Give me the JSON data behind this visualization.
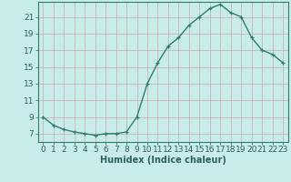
{
  "x": [
    0,
    1,
    2,
    3,
    4,
    5,
    6,
    7,
    8,
    9,
    10,
    11,
    12,
    13,
    14,
    15,
    16,
    17,
    18,
    19,
    20,
    21,
    22,
    23
  ],
  "y": [
    9,
    8,
    7.5,
    7.2,
    7,
    6.8,
    7,
    7,
    7.2,
    9,
    13,
    15.5,
    17.5,
    18.5,
    20,
    21,
    22,
    22.5,
    21.5,
    21,
    18.5,
    17,
    16.5,
    15.5
  ],
  "line_color": "#2d7d6e",
  "marker": "+",
  "bg_color": "#c8ecea",
  "grid_color": "#c8a8a8",
  "axis_color": "#2d7d6e",
  "tick_color": "#2d6060",
  "label_color": "#2d6060",
  "xlabel": "Humidex (Indice chaleur)",
  "xlim_min": -0.5,
  "xlim_max": 23.5,
  "ylim_min": 6.0,
  "ylim_max": 22.8,
  "yticks": [
    7,
    9,
    11,
    13,
    15,
    17,
    19,
    21
  ],
  "xticks": [
    0,
    1,
    2,
    3,
    4,
    5,
    6,
    7,
    8,
    9,
    10,
    11,
    12,
    13,
    14,
    15,
    16,
    17,
    18,
    19,
    20,
    21,
    22,
    23
  ],
  "font_size": 6.5,
  "xlabel_font_size": 7.0,
  "markersize": 3.5,
  "linewidth": 1.0
}
